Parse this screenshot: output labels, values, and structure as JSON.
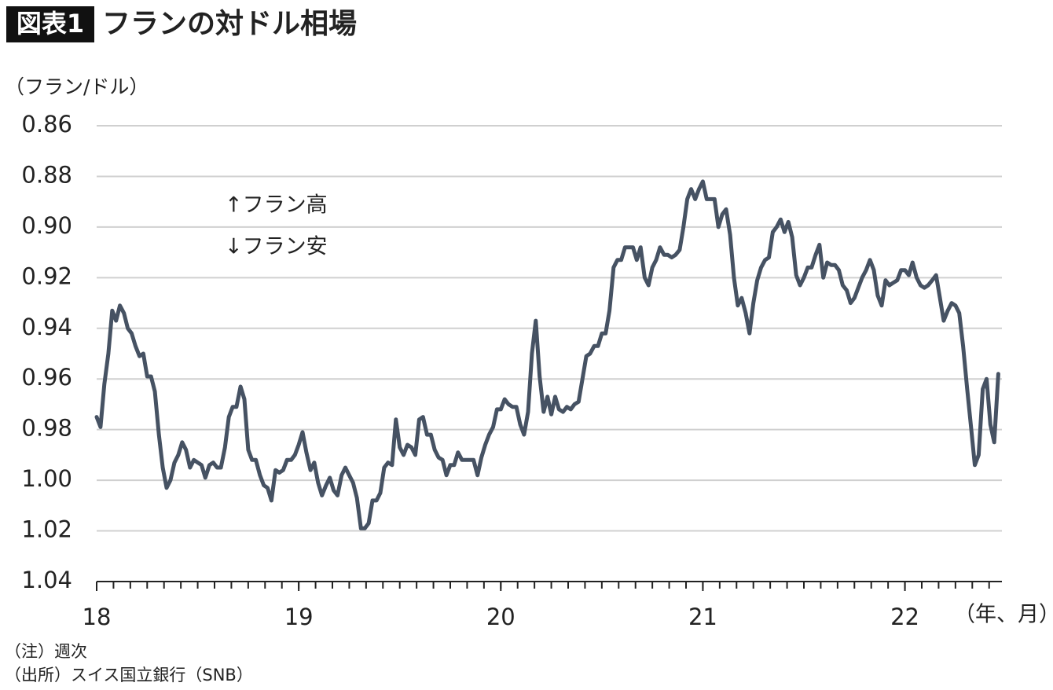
{
  "chart_data": {
    "type": "line",
    "figure_label": "図表1",
    "title": "フランの対ドル相場",
    "y_label": "（フラン/ドル）",
    "x_label": "（年、月）",
    "annotations": [
      "↑フラン高",
      "↓フラン安"
    ],
    "notes": [
      "（注）週次",
      "（出所）スイス国立銀行（SNB）"
    ],
    "color": "#465263",
    "grid": true,
    "xlim": [
      18,
      22.48
    ],
    "xticks": [
      18,
      19,
      20,
      21,
      22
    ],
    "ylim": [
      1.04,
      0.86
    ],
    "yticks": [
      0.86,
      0.88,
      {
        "value": 0.9,
        "label": "0.90"
      },
      0.92,
      0.94,
      0.96,
      0.98,
      {
        "value": 1,
        "label": "1.00"
      },
      1.02,
      1.04
    ],
    "x": [
      18.0,
      18.019,
      18.038,
      18.058,
      18.077,
      18.096,
      18.115,
      18.135,
      18.154,
      18.173,
      18.192,
      18.212,
      18.231,
      18.25,
      18.269,
      18.288,
      18.308,
      18.327,
      18.346,
      18.365,
      18.385,
      18.404,
      18.423,
      18.442,
      18.462,
      18.481,
      18.5,
      18.519,
      18.538,
      18.558,
      18.577,
      18.596,
      18.615,
      18.635,
      18.654,
      18.673,
      18.692,
      18.712,
      18.731,
      18.75,
      18.769,
      18.788,
      18.808,
      18.827,
      18.846,
      18.865,
      18.885,
      18.904,
      18.923,
      18.942,
      18.962,
      18.981,
      19.0,
      19.019,
      19.038,
      19.058,
      19.077,
      19.096,
      19.115,
      19.135,
      19.154,
      19.173,
      19.192,
      19.212,
      19.231,
      19.25,
      19.269,
      19.288,
      19.308,
      19.327,
      19.346,
      19.365,
      19.385,
      19.404,
      19.423,
      19.442,
      19.462,
      19.481,
      19.5,
      19.519,
      19.538,
      19.558,
      19.577,
      19.596,
      19.615,
      19.635,
      19.654,
      19.673,
      19.692,
      19.712,
      19.731,
      19.75,
      19.769,
      19.788,
      19.808,
      19.827,
      19.846,
      19.865,
      19.885,
      19.904,
      19.923,
      19.942,
      19.962,
      19.981,
      20.0,
      20.019,
      20.038,
      20.058,
      20.077,
      20.096,
      20.115,
      20.135,
      20.154,
      20.173,
      20.192,
      20.212,
      20.231,
      20.25,
      20.269,
      20.288,
      20.308,
      20.327,
      20.346,
      20.365,
      20.385,
      20.404,
      20.423,
      20.442,
      20.462,
      20.481,
      20.5,
      20.519,
      20.538,
      20.558,
      20.577,
      20.596,
      20.615,
      20.635,
      20.654,
      20.673,
      20.692,
      20.712,
      20.731,
      20.75,
      20.769,
      20.788,
      20.808,
      20.827,
      20.846,
      20.865,
      20.885,
      20.904,
      20.923,
      20.942,
      20.962,
      20.981,
      21.0,
      21.019,
      21.038,
      21.058,
      21.077,
      21.096,
      21.115,
      21.135,
      21.154,
      21.173,
      21.192,
      21.212,
      21.231,
      21.25,
      21.269,
      21.288,
      21.308,
      21.327,
      21.346,
      21.365,
      21.385,
      21.404,
      21.423,
      21.442,
      21.462,
      21.481,
      21.5,
      21.519,
      21.538,
      21.558,
      21.577,
      21.596,
      21.615,
      21.635,
      21.654,
      21.673,
      21.692,
      21.712,
      21.731,
      21.75,
      21.769,
      21.788,
      21.808,
      21.827,
      21.846,
      21.865,
      21.885,
      21.904,
      21.923,
      21.942,
      21.962,
      21.981,
      22.0,
      22.019,
      22.038,
      22.058,
      22.077,
      22.096,
      22.115,
      22.135,
      22.154,
      22.173,
      22.192,
      22.212,
      22.231,
      22.25,
      22.269,
      22.288,
      22.308,
      22.327,
      22.346,
      22.365,
      22.385,
      22.404,
      22.423,
      22.442,
      22.462
    ],
    "values": [
      0.975,
      0.979,
      0.962,
      0.95,
      0.933,
      0.937,
      0.931,
      0.934,
      0.94,
      0.942,
      0.947,
      0.951,
      0.95,
      0.959,
      0.959,
      0.965,
      0.982,
      0.995,
      1.003,
      1.0,
      0.993,
      0.99,
      0.985,
      0.988,
      0.995,
      0.992,
      0.993,
      0.994,
      0.999,
      0.994,
      0.993,
      0.995,
      0.995,
      0.987,
      0.975,
      0.971,
      0.971,
      0.963,
      0.968,
      0.988,
      0.992,
      0.992,
      0.998,
      1.002,
      1.003,
      1.008,
      0.996,
      0.997,
      0.996,
      0.992,
      0.992,
      0.99,
      0.986,
      0.981,
      0.989,
      0.996,
      0.993,
      1.001,
      1.006,
      1.002,
      0.999,
      1.004,
      1.006,
      0.998,
      0.995,
      0.998,
      1.001,
      1.007,
      1.019,
      1.019,
      1.017,
      1.008,
      1.008,
      1.005,
      0.995,
      0.993,
      0.994,
      0.976,
      0.987,
      0.99,
      0.986,
      0.987,
      0.99,
      0.976,
      0.975,
      0.982,
      0.982,
      0.988,
      0.991,
      0.992,
      0.998,
      0.994,
      0.994,
      0.989,
      0.992,
      0.992,
      0.992,
      0.992,
      0.998,
      0.991,
      0.986,
      0.982,
      0.979,
      0.972,
      0.972,
      0.968,
      0.97,
      0.971,
      0.971,
      0.978,
      0.982,
      0.973,
      0.95,
      0.937,
      0.959,
      0.973,
      0.967,
      0.974,
      0.967,
      0.972,
      0.973,
      0.971,
      0.972,
      0.97,
      0.969,
      0.96,
      0.951,
      0.95,
      0.947,
      0.947,
      0.942,
      0.942,
      0.933,
      0.916,
      0.913,
      0.913,
      0.908,
      0.908,
      0.908,
      0.913,
      0.908,
      0.92,
      0.923,
      0.916,
      0.913,
      0.908,
      0.911,
      0.911,
      0.912,
      0.911,
      0.909,
      0.9,
      0.889,
      0.885,
      0.889,
      0.885,
      0.882,
      0.889,
      0.889,
      0.889,
      0.9,
      0.895,
      0.893,
      0.903,
      0.92,
      0.931,
      0.928,
      0.934,
      0.942,
      0.93,
      0.921,
      0.916,
      0.913,
      0.912,
      0.902,
      0.9,
      0.897,
      0.902,
      0.898,
      0.904,
      0.919,
      0.923,
      0.92,
      0.916,
      0.916,
      0.911,
      0.907,
      0.92,
      0.914,
      0.915,
      0.915,
      0.917,
      0.923,
      0.925,
      0.93,
      0.928,
      0.924,
      0.92,
      0.917,
      0.913,
      0.917,
      0.927,
      0.931,
      0.921,
      0.923,
      0.922,
      0.921,
      0.917,
      0.917,
      0.919,
      0.914,
      0.92,
      0.923,
      0.924,
      0.923,
      0.921,
      0.919,
      0.928,
      0.937,
      0.933,
      0.93,
      0.931,
      0.934,
      0.947,
      0.964,
      0.979,
      0.994,
      0.99,
      0.964,
      0.96,
      0.978,
      0.985,
      0.958
    ]
  }
}
